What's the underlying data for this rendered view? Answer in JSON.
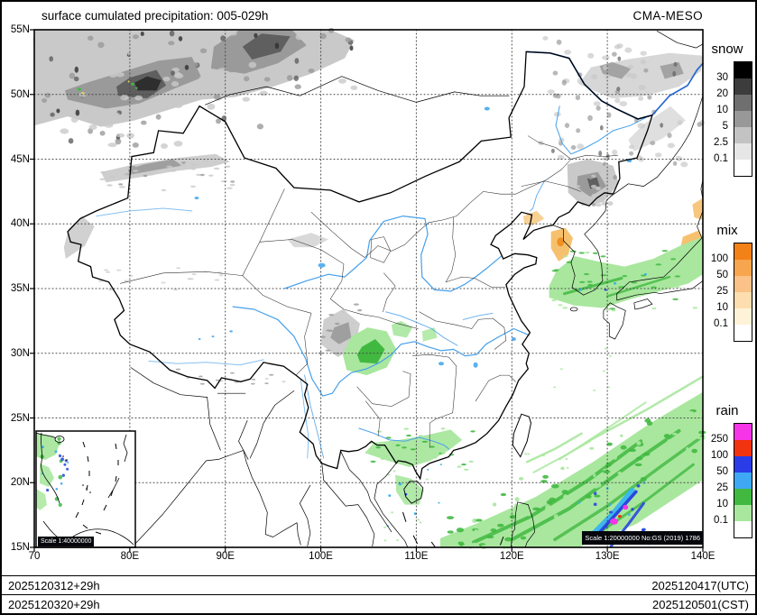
{
  "header": {
    "title": "surface cumulated precipitation: 005-029h",
    "model": "CMA-MESO"
  },
  "map": {
    "x_ticks": [
      "70",
      "80E",
      "90E",
      "100E",
      "110E",
      "120E",
      "130E",
      "140E"
    ],
    "y_ticks": [
      "55N",
      "50N",
      "45N",
      "40N",
      "35N",
      "30N",
      "25N",
      "20N",
      "15N"
    ],
    "scale_badge": "Scale 1:20000000 No:GS (2019) 1786",
    "inset_scale_badge": "Scale 1:40000000"
  },
  "legends": [
    {
      "id": "snow",
      "title": "snow",
      "labels": [
        "30",
        "20",
        "10",
        "5",
        "2.5",
        "0.1"
      ],
      "colors": [
        "#000000",
        "#3c3c3c",
        "#6f6f6f",
        "#989898",
        "#c3c3c3",
        "#e6e6e6",
        "#ffffff"
      ]
    },
    {
      "id": "mix",
      "title": "mix",
      "labels": [
        "100",
        "50",
        "25",
        "10",
        "0.1"
      ],
      "colors": [
        "#f28118",
        "#f7a54e",
        "#fac288",
        "#fcdeb0",
        "#fef3d8",
        "#ffffff"
      ]
    },
    {
      "id": "rain",
      "title": "rain",
      "labels": [
        "250",
        "100",
        "50",
        "25",
        "10",
        "0.1"
      ],
      "colors": [
        "#f635e8",
        "#f2330f",
        "#2a3ce8",
        "#3fa8f5",
        "#41b941",
        "#a9e79e",
        "#ffffff"
      ]
    }
  ],
  "footer": {
    "runs": [
      {
        "left": "2025120312+29h",
        "right": "2025120417(UTC)"
      },
      {
        "left": "2025120320+29h",
        "right": "2025120501(CST)"
      }
    ]
  }
}
